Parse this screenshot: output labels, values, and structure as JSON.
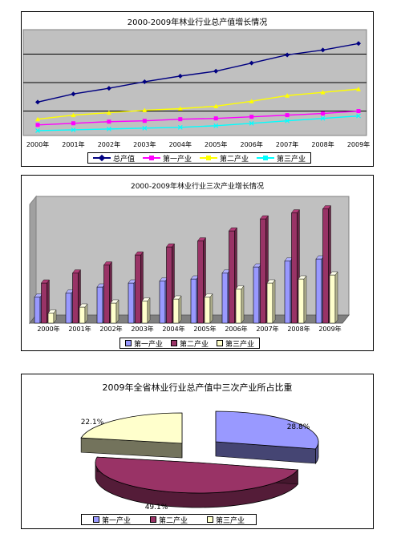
{
  "colors": {
    "total": "#000080",
    "primary": "#ff00ff",
    "secondary": "#ffff00",
    "tertiary": "#00ffff",
    "bar_primary": "#9999ff",
    "bar_secondary": "#993366",
    "bar_tertiary": "#ffffcc",
    "plot_bg": "#c0c0c0"
  },
  "chart_data": [
    {
      "type": "line",
      "title": "2000-2009年林业行业总产值增长情况",
      "categories": [
        "2000年",
        "2001年",
        "2002年",
        "2003年",
        "2004年",
        "2005年",
        "2006年",
        "2007年",
        "2008年",
        "2009年"
      ],
      "ylim": [
        0,
        130
      ],
      "grid": true,
      "legend": "bottom",
      "series": [
        {
          "name": "总产值",
          "values": [
            41,
            51,
            58,
            66,
            73,
            79,
            89,
            99,
            105,
            113
          ]
        },
        {
          "name": "第一产业",
          "values": [
            13,
            15,
            17,
            18,
            20,
            21,
            23,
            25,
            27,
            30
          ]
        },
        {
          "name": "第二产业",
          "values": [
            20,
            25,
            28,
            31,
            33,
            36,
            42,
            49,
            53,
            57
          ]
        },
        {
          "name": "第三产业",
          "values": [
            6,
            7,
            8,
            9,
            10,
            12,
            15,
            18,
            21,
            24
          ]
        }
      ]
    },
    {
      "type": "bar",
      "title": "2000-2009年林业行业三次产业增长情况",
      "categories": [
        "2000年",
        "2001年",
        "2002年",
        "2003年",
        "2004年",
        "2005年",
        "2006年",
        "2007年",
        "2008年",
        "2009年"
      ],
      "ylim": [
        0,
        60
      ],
      "legend": "bottom",
      "series": [
        {
          "name": "第一产业",
          "values": [
            13,
            15,
            18,
            20,
            21,
            22,
            25,
            28,
            31,
            32
          ]
        },
        {
          "name": "第二产业",
          "values": [
            20,
            25,
            29,
            34,
            38,
            41,
            46,
            52,
            55,
            57
          ]
        },
        {
          "name": "第三产业",
          "values": [
            5,
            8,
            10,
            11,
            12,
            13,
            17,
            20,
            22,
            24
          ]
        }
      ]
    },
    {
      "type": "pie",
      "title": "2009年全省林业行业总产值中三次产业所占比重",
      "legend": "bottom",
      "slices": [
        {
          "name": "第一产业",
          "value": 28.8,
          "label": "28.8%"
        },
        {
          "name": "第二产业",
          "value": 49.1,
          "label": "49.1%"
        },
        {
          "name": "第三产业",
          "value": 22.1,
          "label": "22.1%"
        }
      ]
    }
  ]
}
